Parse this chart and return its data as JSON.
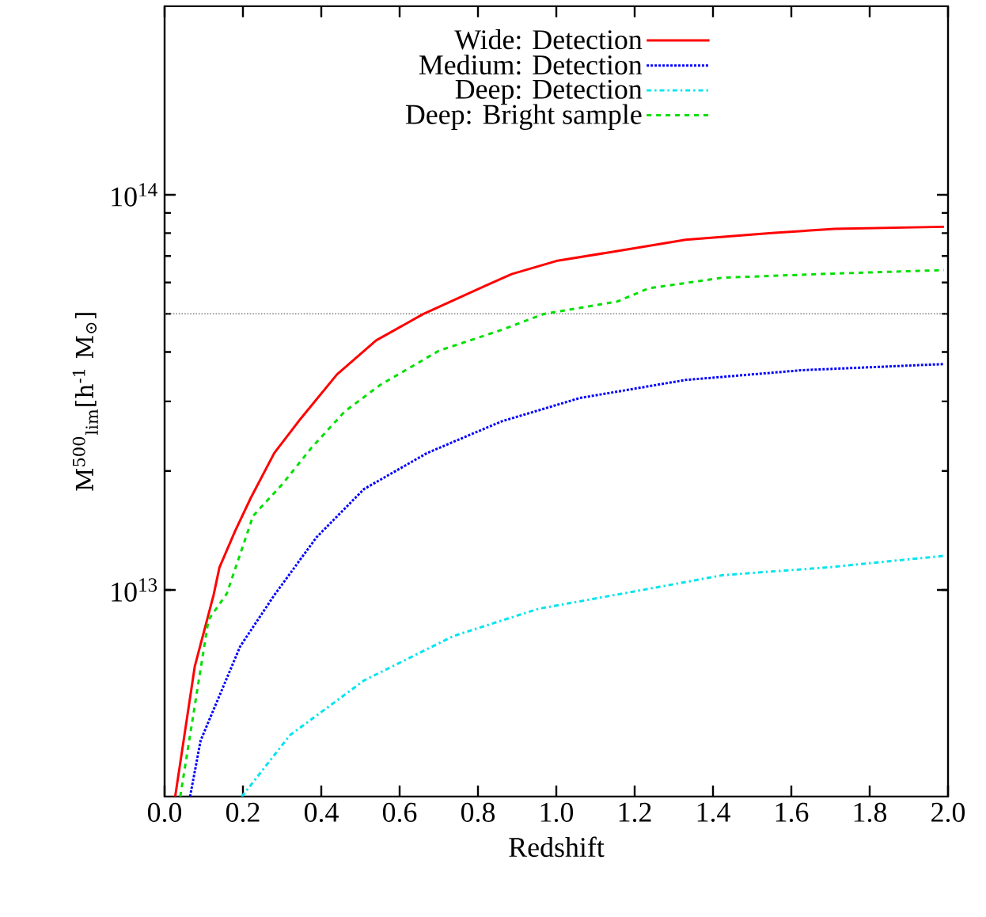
{
  "chart_data": {
    "type": "line",
    "xlabel": "Redshift",
    "ylabel": "M$^{500}$$_{lim}$[h$^{-1}$ M$_{⊙}$]",
    "xlim": [
      0,
      2
    ],
    "ylim": [
      3000000000000.0,
      300000000000000.0
    ],
    "log": "y",
    "xticks": [
      {
        "value": 0,
        "label": "0.0"
      },
      0.2,
      0.4,
      0.6,
      0.8,
      {
        "value": 1,
        "label": "1.0"
      },
      1.2,
      1.4,
      1.6,
      1.8,
      {
        "value": 2,
        "label": "2.0"
      }
    ],
    "yticks": [
      {
        "value": 10000000000000.0,
        "label": "10$^{13}$"
      },
      {
        "value": 100000000000000.0,
        "label": "10$^{14}$"
      }
    ],
    "legend": "top",
    "grid": false,
    "marker": "none",
    "ref_lines": [
      {
        "axis": "y",
        "value": 50000000000000.0,
        "color": "#808080",
        "line_style": "dotted"
      }
    ],
    "series": [
      {
        "name": "Wide: Detection",
        "color": "#ff0000",
        "line_style": "solid",
        "x": [
          0.027,
          0.077,
          0.125,
          0.14,
          0.18,
          0.22,
          0.28,
          0.347,
          0.44,
          0.54,
          0.66,
          0.82,
          0.886,
          1.0,
          1.19,
          1.33,
          1.55,
          1.71,
          1.99
        ],
        "values": [
          3000000000000.0,
          6400000000000.0,
          9700000000000.0,
          11400000000000.0,
          14100000000000.0,
          17100000000000.0,
          22200000000000.0,
          27100000000000.0,
          35100000000000.0,
          42800000000000.0,
          49900000000000.0,
          58900000000000.0,
          63000000000000.0,
          68000000000000.0,
          73000000000000.0,
          77000000000000.0,
          80000000000000.0,
          82000000000000.0,
          83000000000000.0
        ]
      },
      {
        "name": "Medium: Detection",
        "color": "#0000ff",
        "line_style": "dotted",
        "x": [
          0.065,
          0.092,
          0.193,
          0.28,
          0.388,
          0.509,
          0.67,
          0.86,
          1.06,
          1.33,
          1.63,
          1.99
        ],
        "values": [
          3000000000000.0,
          4160000000000.0,
          7200000000000.0,
          9700000000000.0,
          13600000000000.0,
          18000000000000.0,
          22200000000000.0,
          26700000000000.0,
          30600000000000.0,
          34000000000000.0,
          36000000000000.0,
          37300000000000.0
        ]
      },
      {
        "name": "Deep: Detection",
        "color": "#00e5ee",
        "line_style": "dashdot",
        "x": [
          0.197,
          0.32,
          0.509,
          0.738,
          0.954,
          1.196,
          1.425,
          1.69,
          1.99
        ],
        "values": [
          3000000000000.0,
          4290000000000.0,
          5900000000000.0,
          7650000000000.0,
          8960000000000.0,
          9900000000000.0,
          10900000000000.0,
          11400000000000.0,
          12200000000000.0
        ]
      },
      {
        "name": "Deep: Bright sample",
        "color": "#00e000",
        "line_style": "dashed",
        "x": [
          0.04,
          0.112,
          0.159,
          0.226,
          0.3,
          0.375,
          0.46,
          0.55,
          0.7,
          0.86,
          0.967,
          1.156,
          1.236,
          1.425,
          1.69,
          1.99
        ],
        "values": [
          3000000000000.0,
          8400000000000.0,
          9800000000000.0,
          15400000000000.0,
          18500000000000.0,
          22900000000000.0,
          28300000000000.0,
          33000000000000.0,
          40300000000000.0,
          45500000000000.0,
          49900000000000.0,
          53700000000000.0,
          58000000000000.0,
          61700000000000.0,
          63100000000000.0,
          64500000000000.0
        ]
      }
    ]
  }
}
